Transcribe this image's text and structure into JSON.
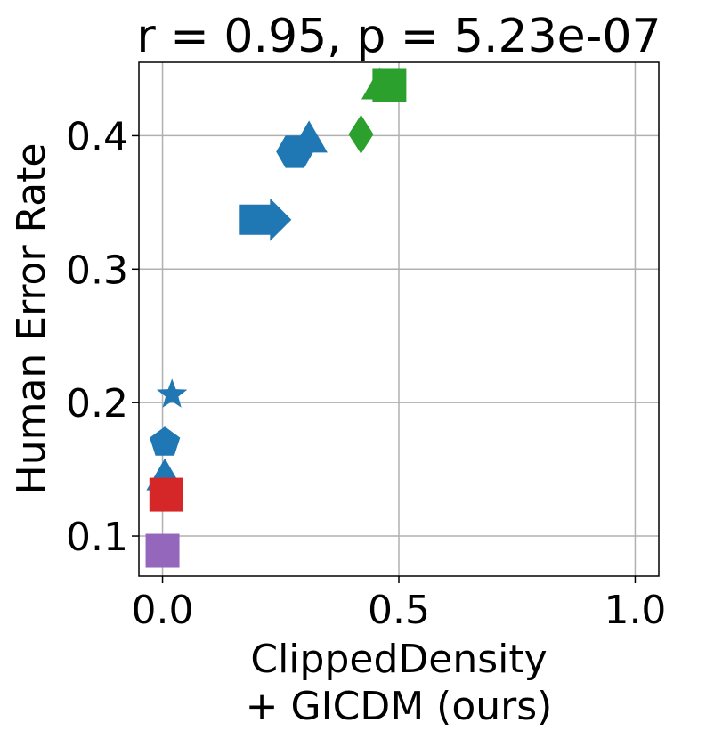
{
  "chart_data": {
    "type": "scatter",
    "title": "r = 0.95, p = 5.23e-07",
    "xlabel_lines": [
      "ClippedDensity",
      "+ GICDM (ours)"
    ],
    "ylabel": "Human Error Rate",
    "xlim": [
      -0.05,
      1.05
    ],
    "ylim": [
      0.07,
      0.455
    ],
    "xticks": [
      0.0,
      0.5,
      1.0
    ],
    "xtick_labels": [
      "0.0",
      "0.5",
      "1.0"
    ],
    "yticks": [
      0.1,
      0.2,
      0.3,
      0.4
    ],
    "ytick_labels": [
      "0.1",
      "0.2",
      "0.3",
      "0.4"
    ],
    "grid": true,
    "colors": {
      "blue": "#1f77b4",
      "green": "#2ca02c",
      "red": "#d62728",
      "purple": "#9467bd"
    },
    "points": [
      {
        "x": 0.48,
        "y": 0.438,
        "marker": "square",
        "color": "#2ca02c"
      },
      {
        "x": 0.46,
        "y": 0.438,
        "marker": "triangle-up",
        "color": "#2ca02c"
      },
      {
        "x": 0.42,
        "y": 0.401,
        "marker": "diamond",
        "color": "#2ca02c"
      },
      {
        "x": 0.31,
        "y": 0.398,
        "marker": "triangle-up",
        "color": "#1f77b4"
      },
      {
        "x": 0.28,
        "y": 0.388,
        "marker": "hexagon",
        "color": "#1f77b4"
      },
      {
        "x": 0.22,
        "y": 0.337,
        "marker": "arrow-right",
        "color": "#1f77b4"
      },
      {
        "x": 0.02,
        "y": 0.206,
        "marker": "star",
        "color": "#1f77b4"
      },
      {
        "x": 0.005,
        "y": 0.17,
        "marker": "pentagon",
        "color": "#1f77b4"
      },
      {
        "x": 0.005,
        "y": 0.145,
        "marker": "triangle-up",
        "color": "#1f77b4"
      },
      {
        "x": 0.008,
        "y": 0.131,
        "marker": "square",
        "color": "#d62728"
      },
      {
        "x": 0.0,
        "y": 0.089,
        "marker": "square",
        "color": "#9467bd"
      }
    ]
  }
}
